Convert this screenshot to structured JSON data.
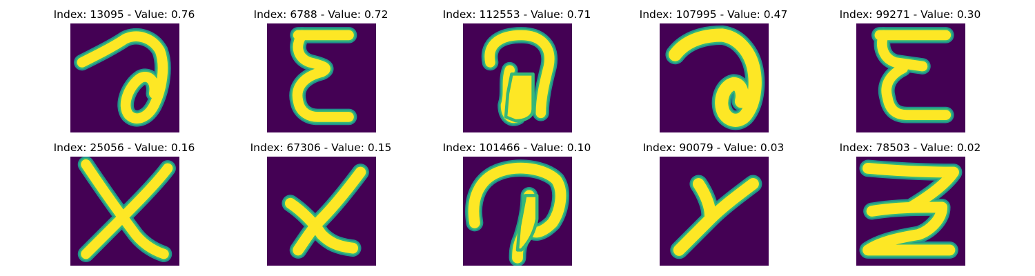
{
  "colors": {
    "background": "#440154",
    "stroke_edge": "#21918c",
    "stroke_mid": "#35b779",
    "stroke_core": "#fde725"
  },
  "panels": [
    {
      "title": "Index: 13095 - Value: 0.76",
      "glyph": "script-a"
    },
    {
      "title": "Index: 6788 - Value: 0.72",
      "glyph": "epsilon"
    },
    {
      "title": "Index: 112553 - Value: 0.71",
      "glyph": "blob-a"
    },
    {
      "title": "Index: 107995 - Value: 0.47",
      "glyph": "script-a-bold"
    },
    {
      "title": "Index: 99271 - Value: 0.30",
      "glyph": "epsilon-2"
    },
    {
      "title": "Index: 25056 - Value: 0.16",
      "glyph": "x-large"
    },
    {
      "title": "Index: 67306 - Value: 0.15",
      "glyph": "x-small"
    },
    {
      "title": "Index: 101466 - Value: 0.10",
      "glyph": "p-loop"
    },
    {
      "title": "Index: 90079 - Value: 0.03",
      "glyph": "y-shape"
    },
    {
      "title": "Index: 78503 - Value: 0.02",
      "glyph": "three-reversed"
    }
  ]
}
